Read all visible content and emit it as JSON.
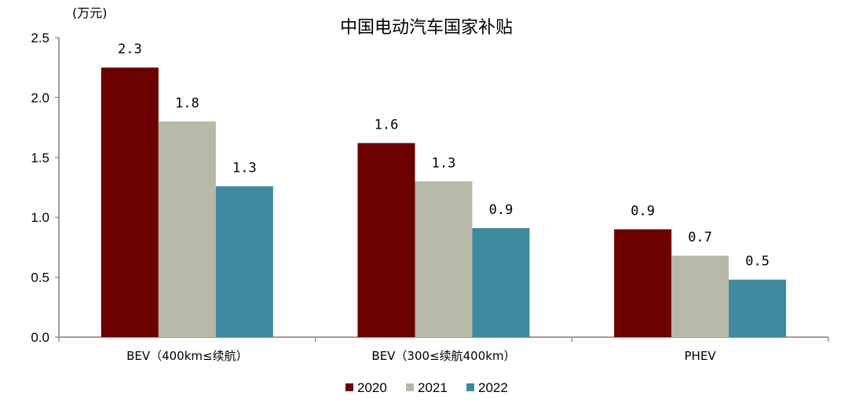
{
  "chart_data": {
    "type": "bar",
    "title": "中国电动汽车国家补贴",
    "unit_label": "(万元)",
    "categories": [
      "BEV（400km≤续航）",
      "BEV（300≤续航400km）",
      "PHEV"
    ],
    "series": [
      {
        "name": "2020",
        "color": "#6b0000",
        "values": [
          2.25,
          1.62,
          0.9
        ],
        "labels": [
          "2.3",
          "1.6",
          "0.9"
        ]
      },
      {
        "name": "2021",
        "color": "#b8b8a6",
        "values": [
          1.8,
          1.3,
          0.68
        ],
        "labels": [
          "1.8",
          "1.3",
          "0.7"
        ]
      },
      {
        "name": "2022",
        "color": "#3f8a9e",
        "values": [
          1.26,
          0.91,
          0.48
        ],
        "labels": [
          "1.3",
          "0.9",
          "0.5"
        ]
      }
    ],
    "yticks": [
      "0.0",
      "0.5",
      "1.0",
      "1.5",
      "2.0",
      "2.5"
    ],
    "ylim": [
      0,
      2.5
    ],
    "grid": false,
    "legend_position": "bottom"
  }
}
